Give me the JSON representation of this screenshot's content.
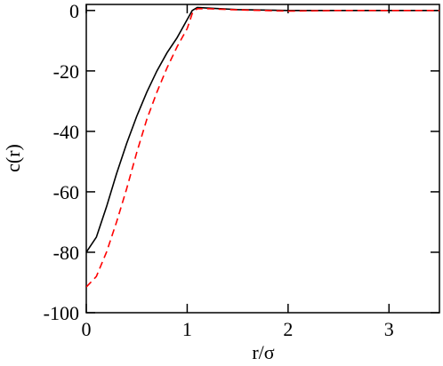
{
  "chart_data": {
    "type": "line",
    "x_label": "r/σ",
    "y_label": "c(r)",
    "x": [
      0,
      0.1,
      0.2,
      0.3,
      0.4,
      0.5,
      0.6,
      0.7,
      0.8,
      0.9,
      0.95,
      1.0,
      1.05,
      1.1,
      1.2,
      1.5,
      2,
      2.5,
      3,
      3.5
    ],
    "series": [
      {
        "color": "#000000",
        "dash": "solid",
        "values": [
          -80,
          -75,
          -65,
          -54,
          -44,
          -35,
          -27,
          -20,
          -14,
          -9,
          -6,
          -3,
          0,
          1,
          0.8,
          0.3,
          0,
          0,
          0,
          0
        ]
      },
      {
        "color": "#ff0000",
        "dash": "dashed",
        "values": [
          -91.5,
          -88,
          -80,
          -70,
          -59,
          -47,
          -36,
          -27,
          -19,
          -12,
          -9,
          -6,
          -1,
          0.6,
          0.6,
          0.2,
          -0.2,
          0,
          0,
          0
        ]
      }
    ],
    "xlim": [
      0,
      3.5
    ],
    "ylim": [
      -100,
      2
    ],
    "xticks": [
      0,
      1,
      2,
      3
    ],
    "yticks": [
      0,
      -20,
      -40,
      -60,
      -80,
      -100
    ]
  }
}
